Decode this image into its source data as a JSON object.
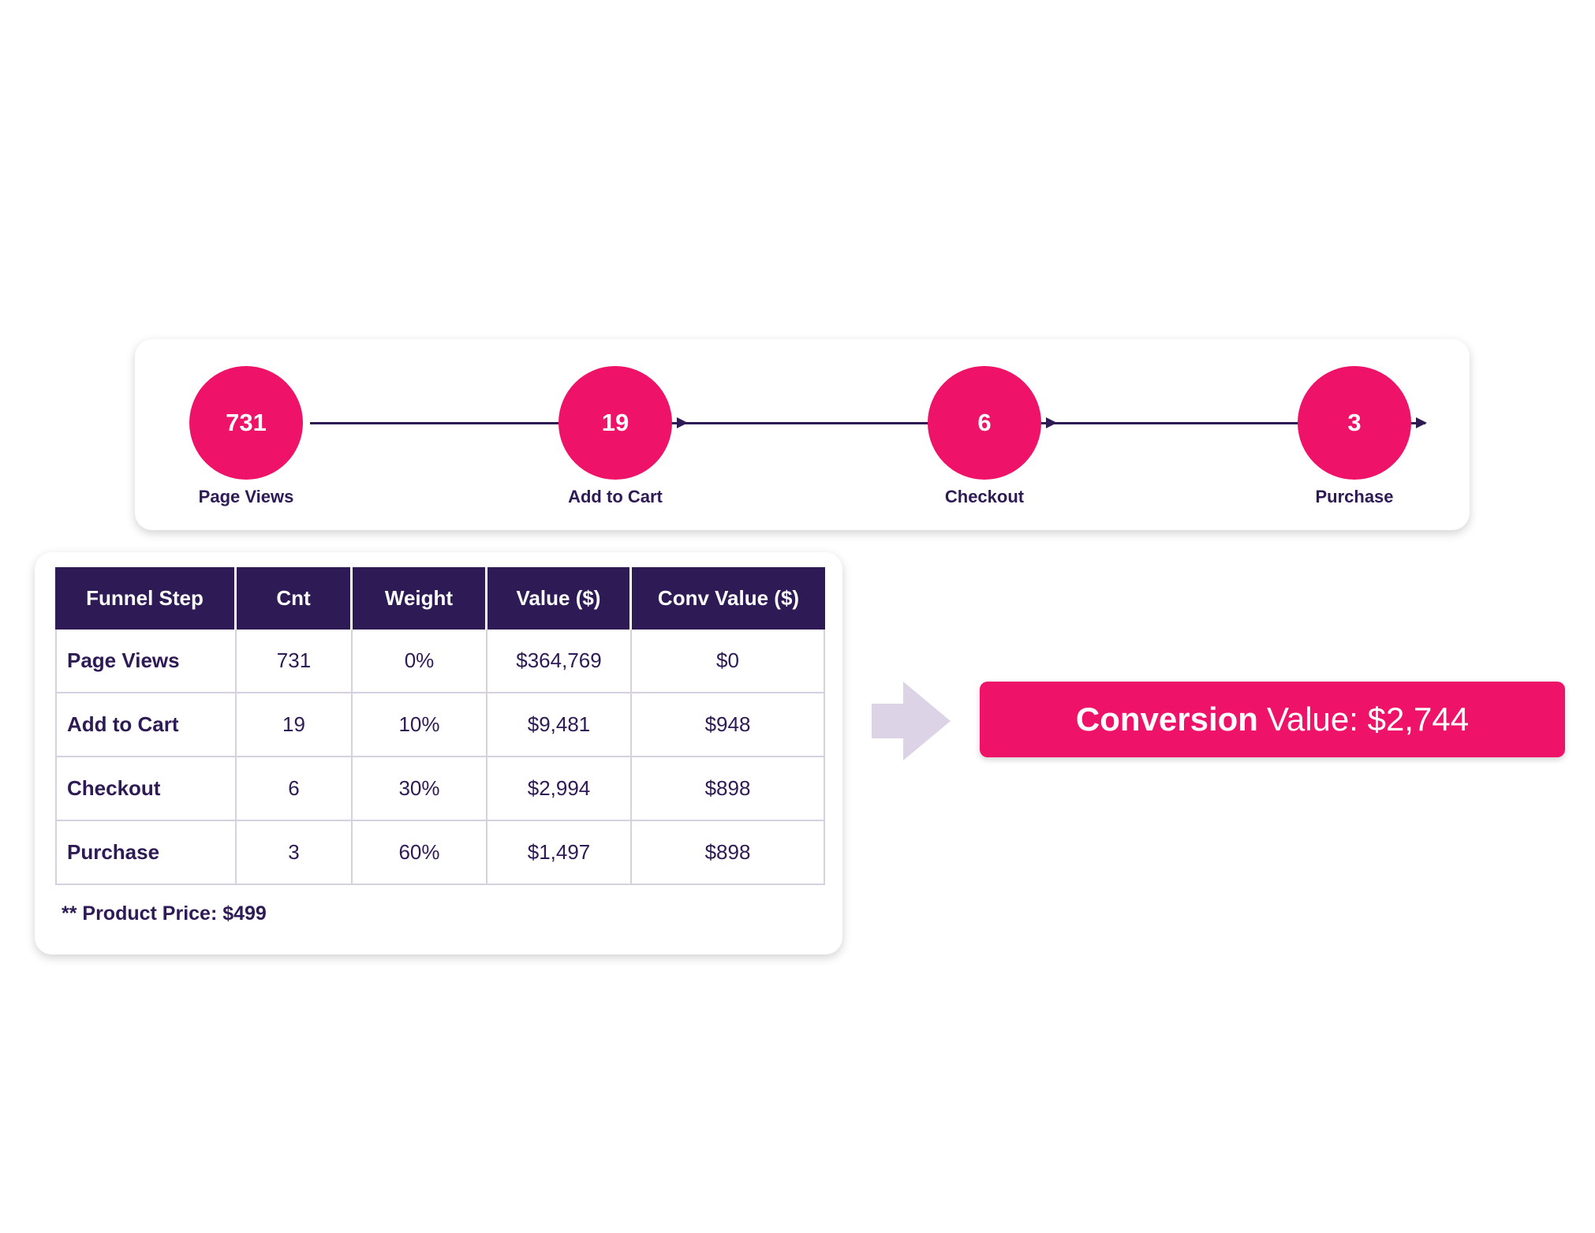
{
  "funnel_steps": [
    {
      "count": "731",
      "label": "Page Views"
    },
    {
      "count": "19",
      "label": "Add to Cart"
    },
    {
      "count": "6",
      "label": "Checkout"
    },
    {
      "count": "3",
      "label": "Purchase"
    }
  ],
  "table": {
    "headers": [
      "Funnel Step",
      "Cnt",
      "Weight",
      "Value ($)",
      "Conv Value ($)"
    ],
    "rows": [
      [
        "Page Views",
        "731",
        "0%",
        "$364,769",
        "$0"
      ],
      [
        "Add to Cart",
        "19",
        "10%",
        "$9,481",
        "$948"
      ],
      [
        "Checkout",
        "6",
        "30%",
        "$2,994",
        "$898"
      ],
      [
        "Purchase",
        "3",
        "60%",
        "$1,497",
        "$898"
      ]
    ],
    "footnote": "** Product Price: $499"
  },
  "conversion": {
    "strong": "Conversion",
    "rest": "Value: $2,744"
  },
  "colors": {
    "accent_pink": "#ee1268",
    "dark_purple": "#2e1a55",
    "light_lavender": "#dcd3e6"
  },
  "icons": {
    "step_connector": "arrow-right-icon",
    "result_arrow": "block-arrow-right-icon"
  }
}
